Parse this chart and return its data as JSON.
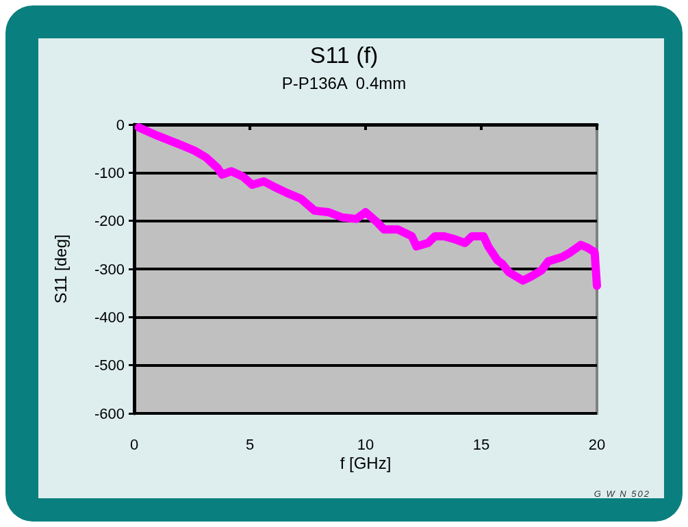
{
  "chart_data": {
    "type": "line",
    "title": "S11 (f)",
    "subtitle": "P-P136A  0.4mm",
    "xlabel": "f [GHz]",
    "ylabel": "S11 [deg]",
    "annotations": [
      "G W N  502"
    ],
    "x": [
      0.2,
      1.0,
      1.9,
      2.6,
      3.1,
      3.6,
      3.8,
      4.2,
      4.7,
      5.1,
      5.6,
      6.0,
      6.6,
      7.2,
      7.8,
      8.4,
      9.0,
      9.6,
      10.0,
      10.5,
      10.8,
      11.4,
      12.0,
      12.2,
      12.7,
      13.0,
      13.4,
      13.9,
      14.3,
      14.6,
      15.1,
      15.3,
      15.7,
      15.9,
      16.2,
      16.8,
      17.1,
      17.6,
      17.9,
      18.5,
      18.8,
      19.3,
      19.6,
      19.9,
      20.0
    ],
    "series": [
      {
        "color": "#ff00ff",
        "values": [
          -6,
          -23,
          -40,
          -54,
          -68,
          -90,
          -104,
          -97,
          -108,
          -125,
          -118,
          -128,
          -142,
          -154,
          -179,
          -182,
          -193,
          -196,
          -182,
          -203,
          -218,
          -218,
          -232,
          -253,
          -246,
          -232,
          -232,
          -239,
          -246,
          -232,
          -232,
          -253,
          -282,
          -289,
          -307,
          -324,
          -317,
          -303,
          -284,
          -275,
          -267,
          -250,
          -256,
          -265,
          -335
        ]
      }
    ],
    "xlim": [
      0,
      20
    ],
    "xticks": [
      0,
      5,
      10,
      15,
      20
    ],
    "ylim": [
      -600,
      0
    ],
    "yticks": [
      -600,
      -500,
      -400,
      -300,
      -200,
      -100,
      0
    ],
    "grid": "y",
    "line_style": "solid"
  }
}
